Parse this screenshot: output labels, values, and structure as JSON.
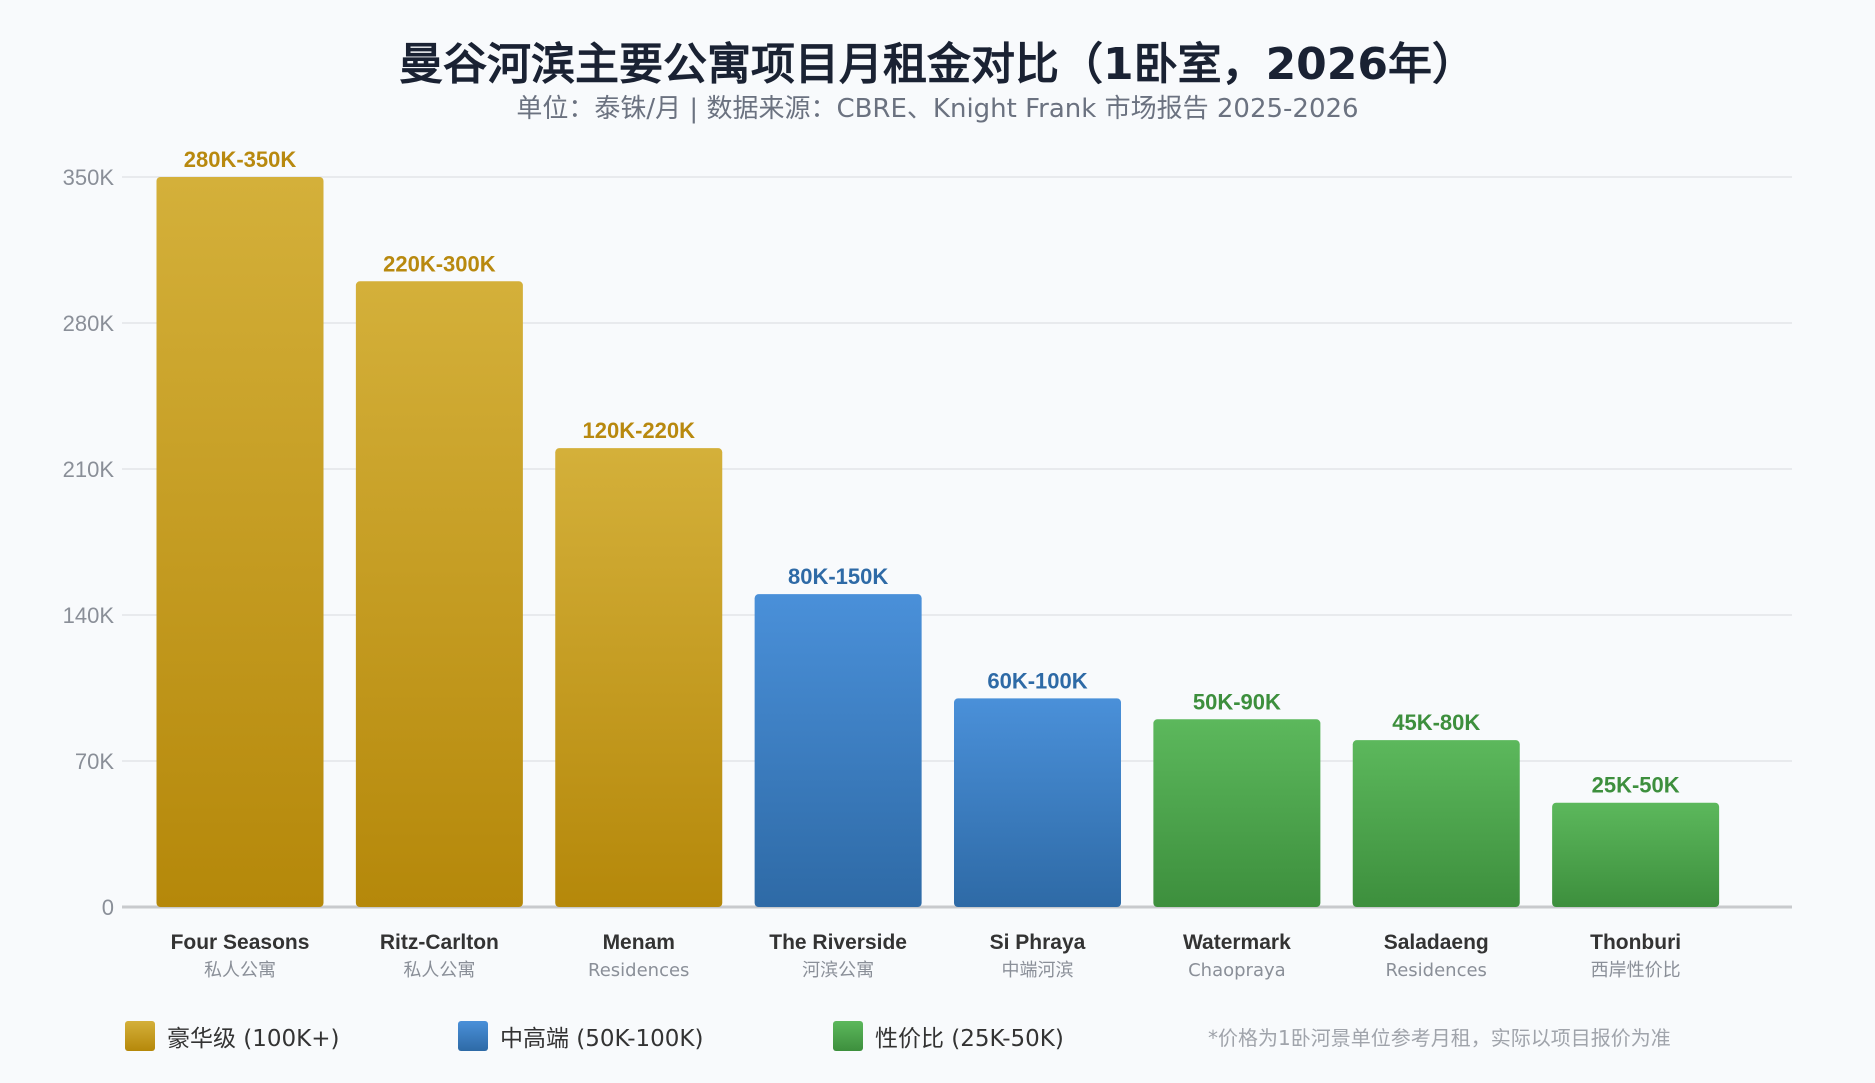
{
  "header": {
    "title": "曼谷河滨主要公寓项目月租金对比（1卧室，2026年）",
    "subtitle": "单位：泰铢/月 | 数据来源：CBRE、Knight Frank 市场报告 2025-2026"
  },
  "legend": [
    {
      "label": "豪华级 (100K+)",
      "color": "#c99d1b"
    },
    {
      "label": "中高端 (50K-100K)",
      "color": "#3a7dc5"
    },
    {
      "label": "性价比 (25K-50K)",
      "color": "#4caf50"
    }
  ],
  "footnote": "*价格为1卧河景单位参考月租，实际以项目报价为准",
  "colors": {
    "luxury_top": "#d4b03a",
    "luxury_bottom": "#b5880a",
    "luxury_label": "#b8890f",
    "mid_top": "#4a90d9",
    "mid_bottom": "#2e6aa6",
    "mid_label": "#2e6aa6",
    "value_top": "#5cb85c",
    "value_bottom": "#3d8f3d",
    "value_label": "#3d8f3d",
    "grid": "#e2e4e8",
    "axis": "#c8cacd"
  },
  "chart_data": {
    "type": "bar",
    "ylim": [
      0,
      350000
    ],
    "yticks": [
      0,
      70000,
      140000,
      210000,
      280000,
      350000
    ],
    "ytick_labels": [
      "0",
      "70K",
      "140K",
      "210K",
      "280K",
      "350K"
    ],
    "grid": true,
    "legend_position": "bottom",
    "bars": [
      {
        "name": "Four Seasons",
        "sub": "私人公寓",
        "range_label": "280K-350K",
        "min": 280000,
        "max": 350000,
        "tier": "luxury"
      },
      {
        "name": "Ritz-Carlton",
        "sub": "私人公寓",
        "range_label": "220K-300K",
        "min": 220000,
        "max": 300000,
        "tier": "luxury"
      },
      {
        "name": "Menam",
        "sub": "Residences",
        "range_label": "120K-220K",
        "min": 120000,
        "max": 220000,
        "tier": "luxury"
      },
      {
        "name": "The Riverside",
        "sub": "河滨公寓",
        "range_label": "80K-150K",
        "min": 80000,
        "max": 150000,
        "tier": "mid"
      },
      {
        "name": "Si Phraya",
        "sub": "中端河滨",
        "range_label": "60K-100K",
        "min": 60000,
        "max": 100000,
        "tier": "mid"
      },
      {
        "name": "Watermark",
        "sub": "Chaopraya",
        "range_label": "50K-90K",
        "min": 50000,
        "max": 90000,
        "tier": "value"
      },
      {
        "name": "Saladaeng",
        "sub": "Residences",
        "range_label": "45K-80K",
        "min": 45000,
        "max": 80000,
        "tier": "value"
      },
      {
        "name": "Thonburi",
        "sub": "西岸性价比",
        "range_label": "25K-50K",
        "min": 25000,
        "max": 50000,
        "tier": "value"
      }
    ]
  }
}
